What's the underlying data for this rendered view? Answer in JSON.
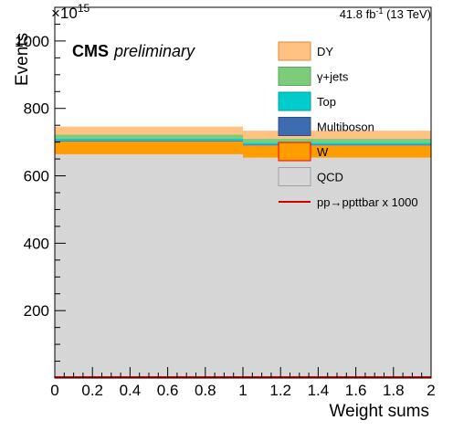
{
  "chart_data": {
    "type": "bar",
    "stacked": true,
    "x_edges": [
      0,
      1,
      2
    ],
    "xlim": [
      0,
      2
    ],
    "ylim": [
      0,
      1100
    ],
    "y_multiplier": "×10",
    "y_multiplier_exp": "15",
    "xlabel": "Weight sums",
    "ylabel": "Events",
    "x_ticks": [
      "0",
      "0.2",
      "0.4",
      "0.6",
      "0.8",
      "1",
      "1.2",
      "1.4",
      "1.6",
      "1.8",
      "2"
    ],
    "y_ticks": [
      "200",
      "400",
      "600",
      "800",
      "1000"
    ],
    "cms_label": "CMS",
    "preliminary_label": "preliminary",
    "lumi_label": "41.8 fb",
    "lumi_exp": "-1",
    "lumi_energy": " (13 TeV)",
    "series": [
      {
        "name": "QCD",
        "color": "#d6d6d6",
        "values": [
          664,
          654
        ]
      },
      {
        "name": "W",
        "color": "#ff9c00",
        "values": [
          38,
          36
        ]
      },
      {
        "name": "Multiboson",
        "color": "#3d6db0",
        "values": [
          3,
          3
        ]
      },
      {
        "name": "Top",
        "color": "#00cccc",
        "values": [
          5,
          5
        ]
      },
      {
        "name": "γ+jets",
        "color": "#7ccc7c",
        "values": [
          12,
          12
        ]
      },
      {
        "name": "DY",
        "color": "#ffc283",
        "values": [
          24,
          24
        ]
      }
    ],
    "signal": {
      "name": "pp→ppttbar x 1000",
      "color": "#cc0000",
      "values": [
        0,
        0
      ]
    },
    "legend_order": [
      "DY",
      "γ+jets",
      "Top",
      "Multiboson",
      "W",
      "QCD",
      "pp→ppttbar x 1000"
    ],
    "legend_position": "top-right"
  }
}
